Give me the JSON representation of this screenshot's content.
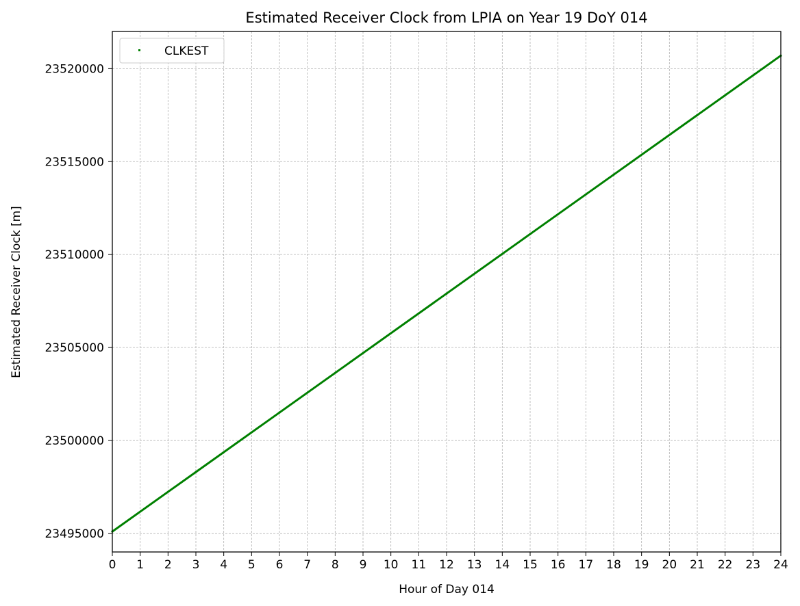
{
  "chart_data": {
    "type": "line",
    "title": "Estimated Receiver Clock from LPIA on Year 19 DoY 014",
    "xlabel": "Hour of Day 014",
    "ylabel": "Estimated Receiver Clock [m]",
    "xlim": [
      0,
      24
    ],
    "ylim": [
      23494000,
      23522000
    ],
    "xticks": [
      0,
      1,
      2,
      3,
      4,
      5,
      6,
      7,
      8,
      9,
      10,
      11,
      12,
      13,
      14,
      15,
      16,
      17,
      18,
      19,
      20,
      21,
      22,
      23,
      24
    ],
    "yticks": [
      23495000,
      23500000,
      23505000,
      23510000,
      23515000,
      23520000
    ],
    "grid": true,
    "legend_position": "top-left",
    "series": [
      {
        "name": "CLKEST",
        "color": "#008000",
        "marker": "point",
        "x": [
          0,
          3,
          6,
          9,
          12,
          15,
          18,
          21,
          24
        ],
        "y": [
          23495100,
          23498300,
          23501500,
          23504700,
          23507900,
          23511100,
          23514300,
          23517500,
          23520700
        ]
      }
    ]
  }
}
